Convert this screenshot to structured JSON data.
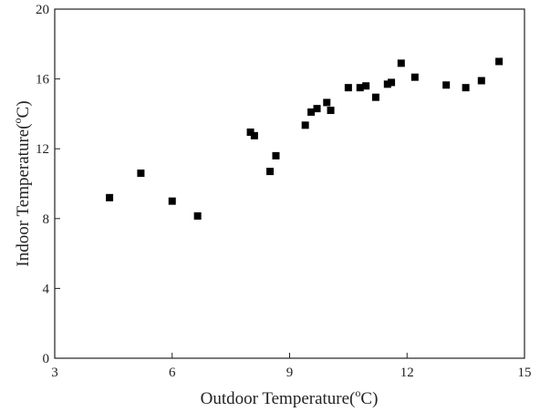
{
  "chart_data": {
    "type": "scatter",
    "title": "",
    "xlabel": {
      "before": "Outdoor Temperature(",
      "sup": "o",
      "after": "C)"
    },
    "ylabel": {
      "before": "Indoor Temperature(",
      "sup": "o",
      "after": "C)"
    },
    "xlim": [
      3,
      15
    ],
    "ylim": [
      0,
      20
    ],
    "xticks": [
      3,
      6,
      9,
      12,
      15
    ],
    "yticks": [
      0,
      4,
      8,
      12,
      16,
      20
    ],
    "grid": false,
    "marker": "square",
    "color": "#000000",
    "series": [
      {
        "points": [
          [
            4.4,
            9.2
          ],
          [
            5.2,
            10.6
          ],
          [
            6.0,
            9.0
          ],
          [
            6.65,
            8.15
          ],
          [
            8.0,
            12.95
          ],
          [
            8.1,
            12.75
          ],
          [
            8.5,
            10.7
          ],
          [
            8.65,
            11.6
          ],
          [
            9.4,
            13.35
          ],
          [
            9.55,
            14.1
          ],
          [
            9.7,
            14.3
          ],
          [
            9.95,
            14.65
          ],
          [
            10.05,
            14.2
          ],
          [
            10.5,
            15.5
          ],
          [
            10.8,
            15.5
          ],
          [
            10.95,
            15.6
          ],
          [
            11.2,
            14.95
          ],
          [
            11.5,
            15.7
          ],
          [
            11.6,
            15.8
          ],
          [
            11.85,
            16.9
          ],
          [
            12.2,
            16.1
          ],
          [
            13.0,
            15.65
          ],
          [
            13.5,
            15.5
          ],
          [
            13.9,
            15.9
          ],
          [
            14.35,
            17.0
          ]
        ]
      }
    ]
  }
}
